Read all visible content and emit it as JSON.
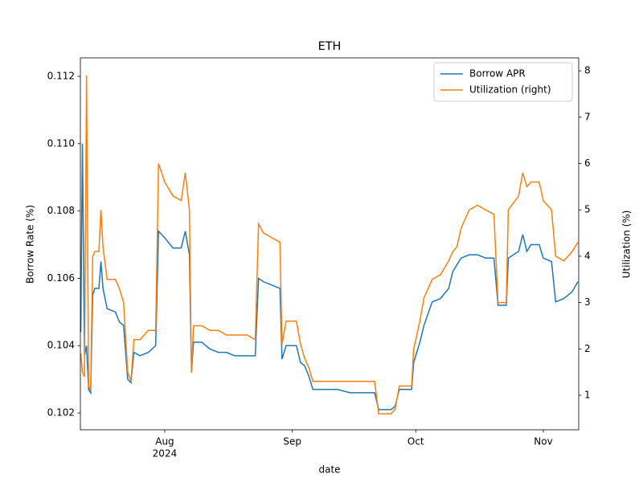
{
  "chart_data": {
    "type": "line",
    "title": "ETH",
    "xlabel": "date",
    "ylabel": "Borrow Rate (%)",
    "y2label": "Utilization (%)",
    "x": [
      193.6,
      194.0,
      194.5,
      195.0,
      195.5,
      196.0,
      196.5,
      197.0,
      198.0,
      198.5,
      199.0,
      200.0,
      202.0,
      203.0,
      204.0,
      205.0,
      205.8,
      206.5,
      208,
      210,
      211.8,
      212.5,
      214,
      216,
      218,
      219,
      220,
      220.5,
      221,
      223,
      225,
      227,
      229,
      231,
      234,
      236,
      236.8,
      238,
      240,
      242,
      242.5,
      243.5,
      246,
      247,
      248,
      249,
      250,
      253,
      256,
      259,
      262,
      265,
      266,
      269,
      270,
      271,
      274,
      274.5,
      276,
      277,
      279,
      281,
      283,
      284,
      285,
      286,
      288,
      290,
      292,
      294,
      295,
      297,
      297.5,
      300,
      301,
      302,
      303,
      305,
      306,
      308,
      309,
      311,
      312,
      313,
      314.4
    ],
    "series": [
      {
        "name": "Borrow APR",
        "color": "#1f77b4",
        "values": [
          0.1044,
          0.11,
          0.1037,
          0.104,
          0.1027,
          0.1026,
          0.1055,
          0.1057,
          0.1057,
          0.1065,
          0.1057,
          0.1051,
          0.105,
          0.1047,
          0.1046,
          0.103,
          0.1029,
          0.1038,
          0.1037,
          0.1038,
          0.104,
          0.1074,
          0.1072,
          0.1069,
          0.1069,
          0.1074,
          0.1067,
          0.1032,
          0.1041,
          0.1041,
          0.1039,
          0.1038,
          0.1038,
          0.1037,
          0.1037,
          0.1037,
          0.106,
          0.1059,
          0.1058,
          0.1057,
          0.1036,
          0.104,
          0.104,
          0.1035,
          0.1034,
          0.1031,
          0.1027,
          0.1027,
          0.1027,
          0.1026,
          0.1026,
          0.1026,
          0.1021,
          0.1021,
          0.1022,
          0.1027,
          0.1027,
          0.1035,
          0.1041,
          0.1046,
          0.1053,
          0.1054,
          0.1057,
          0.1062,
          0.1064,
          0.1066,
          0.1067,
          0.1067,
          0.1066,
          0.1066,
          0.1052,
          0.1052,
          0.1066,
          0.1068,
          0.1073,
          0.1068,
          0.107,
          0.107,
          0.1066,
          0.1065,
          0.1053,
          0.1054,
          0.1055,
          0.1056,
          0.1059
        ]
      },
      {
        "name": "Utilization (right)",
        "color": "#ff7f0e",
        "axis": "y2",
        "values": [
          1.9,
          1.5,
          1.4,
          7.9,
          1.2,
          1.1,
          4.0,
          4.1,
          4.1,
          5.0,
          4.2,
          3.5,
          3.5,
          3.3,
          3.0,
          1.5,
          1.3,
          2.2,
          2.2,
          2.4,
          2.4,
          6.0,
          5.6,
          5.3,
          5.2,
          5.8,
          5.0,
          1.5,
          2.5,
          2.5,
          2.4,
          2.4,
          2.3,
          2.3,
          2.3,
          2.2,
          4.7,
          4.5,
          4.4,
          4.3,
          2.1,
          2.6,
          2.6,
          2.1,
          1.8,
          1.6,
          1.3,
          1.3,
          1.3,
          1.3,
          1.3,
          1.3,
          0.6,
          0.6,
          0.7,
          1.2,
          1.2,
          2.0,
          2.6,
          3.1,
          3.5,
          3.6,
          3.9,
          4.1,
          4.2,
          4.6,
          5.0,
          5.1,
          5.0,
          4.9,
          3.0,
          3.0,
          5.0,
          5.3,
          5.8,
          5.5,
          5.6,
          5.6,
          5.2,
          5.0,
          4.0,
          3.9,
          4.0,
          4.1,
          4.3
        ]
      }
    ],
    "xlim": [
      193.5,
      314.6
    ],
    "xticks": [
      {
        "value": 214,
        "label": "Aug",
        "year": "2024"
      },
      {
        "value": 245,
        "label": "Sep"
      },
      {
        "value": 275,
        "label": "Oct"
      },
      {
        "value": 306,
        "label": "Nov"
      }
    ],
    "ylim": [
      0.1015,
      0.11255
    ],
    "yticks": [
      0.102,
      0.104,
      0.106,
      0.108,
      {
        "value": 0.11,
        "label": "0.110"
      },
      0.112
    ],
    "y2lim": [
      0.255,
      8.28
    ],
    "y2ticks": [
      1,
      2,
      3,
      4,
      5,
      6,
      7,
      8
    ],
    "legend": "upper right",
    "grid": false
  }
}
